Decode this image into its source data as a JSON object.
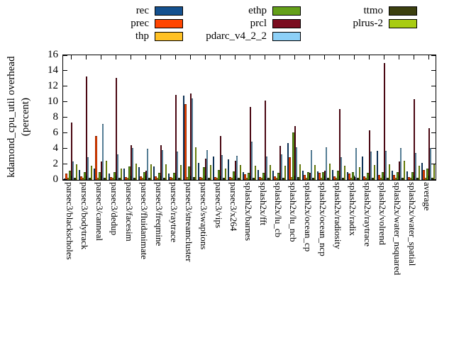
{
  "ylabel_line1": "kdamond_cpu_util overhead",
  "ylabel_line2": "(percent)",
  "chart_data": {
    "type": "bar",
    "title": "",
    "xlabel": "",
    "ylabel": "kdamond_cpu_util overhead (percent)",
    "ylim": [
      0,
      16
    ],
    "yticks": [
      0,
      2,
      4,
      6,
      8,
      10,
      12,
      14,
      16
    ],
    "grid": false,
    "legend_position": "top",
    "categories": [
      "parsec3/blackscholes",
      "parsec3/bodytrack",
      "parsec3/canneal",
      "parsec3/dedup",
      "parsec3/facesim",
      "parsec3/fluidanimate",
      "parsec3/freqmine",
      "parsec3/raytrace",
      "parsec3/streamcluster",
      "parsec3/swaptions",
      "parsec3/vips",
      "parsec3/x264",
      "splash2x/barnes",
      "splash2x/fft",
      "splash2x/lu_cb",
      "splash2x/lu_ncb",
      "splash2x/ocean_cp",
      "splash2x/ocean_ncp",
      "splash2x/radiosity",
      "splash2x/radix",
      "splash2x/raytrace",
      "splash2x/volrend",
      "splash2x/water_nsquared",
      "splash2x/water_spatial",
      "average"
    ],
    "series": [
      {
        "name": "rec",
        "color": "#15518f",
        "values": [
          0.2,
          1.3,
          1.5,
          0.8,
          1.5,
          1.6,
          1.7,
          0.8,
          10.8,
          2.2,
          3.0,
          2.6,
          1.0,
          1.3,
          1.2,
          4.7,
          1.2,
          1.1,
          1.3,
          1.0,
          3.0,
          3.7,
          1.2,
          1.1,
          2.2
        ]
      },
      {
        "name": "prec",
        "color": "#ff4500",
        "values": [
          0.8,
          0.5,
          5.6,
          0.4,
          0.4,
          0.5,
          0.5,
          0.4,
          9.7,
          0.4,
          0.4,
          0.4,
          0.7,
          0.4,
          0.5,
          2.9,
          0.6,
          0.9,
          0.5,
          0.8,
          0.5,
          0.6,
          0.6,
          0.4,
          1.3
        ]
      },
      {
        "name": "thp",
        "color": "#ffc125",
        "values": [
          0.3,
          0.3,
          0.3,
          0.3,
          0.3,
          0.3,
          0.3,
          0.3,
          0.4,
          0.3,
          0.3,
          0.3,
          0.3,
          0.3,
          0.3,
          0.4,
          0.3,
          0.3,
          0.3,
          0.3,
          0.3,
          0.3,
          0.3,
          0.3,
          0.3
        ]
      },
      {
        "name": "ethp",
        "color": "#64a019",
        "values": [
          1.2,
          1.0,
          1.0,
          1.0,
          1.7,
          1.0,
          0.9,
          0.9,
          1.7,
          1.6,
          1.3,
          1.1,
          0.9,
          0.9,
          0.9,
          6.1,
          1.0,
          1.0,
          1.2,
          1.0,
          0.9,
          1.0,
          1.0,
          1.0,
          1.5
        ]
      },
      {
        "name": "prcl",
        "color": "#7b0c1f",
        "values": [
          7.4,
          13.3,
          2.4,
          13.1,
          4.5,
          1.2,
          4.5,
          10.9,
          11.1,
          2.7,
          5.6,
          2.5,
          9.4,
          10.2,
          4.4,
          6.9,
          0.9,
          1.2,
          9.1,
          0.4,
          6.4,
          15.0,
          2.4,
          10.4,
          6.6
        ]
      },
      {
        "name": "pdarc_v4_2_2",
        "color": "#8dd0f7",
        "values": [
          2.4,
          2.9,
          7.2,
          3.3,
          4.1,
          4.0,
          3.8,
          3.6,
          10.5,
          3.8,
          3.2,
          3.1,
          4.9,
          3.0,
          3.3,
          4.2,
          3.8,
          4.2,
          2.9,
          4.1,
          3.6,
          3.7,
          4.1,
          3.5,
          4.1
        ]
      },
      {
        "name": "ttmo",
        "color": "#3c400f",
        "values": [
          0.3,
          0.3,
          0.3,
          0.3,
          0.3,
          0.3,
          0.3,
          0.3,
          0.4,
          0.3,
          0.3,
          0.3,
          0.3,
          0.3,
          0.3,
          0.4,
          0.3,
          0.3,
          0.3,
          0.3,
          0.3,
          0.3,
          0.3,
          0.3,
          0.3
        ]
      },
      {
        "name": "plrus-2",
        "color": "#a8cc12",
        "values": [
          2.0,
          1.8,
          2.5,
          1.5,
          2.1,
          2.0,
          2.0,
          1.9,
          4.2,
          1.9,
          1.5,
          1.9,
          1.8,
          1.9,
          1.8,
          2.0,
          1.9,
          2.1,
          1.8,
          1.6,
          1.9,
          2.0,
          2.5,
          1.8,
          2.0
        ]
      }
    ]
  }
}
